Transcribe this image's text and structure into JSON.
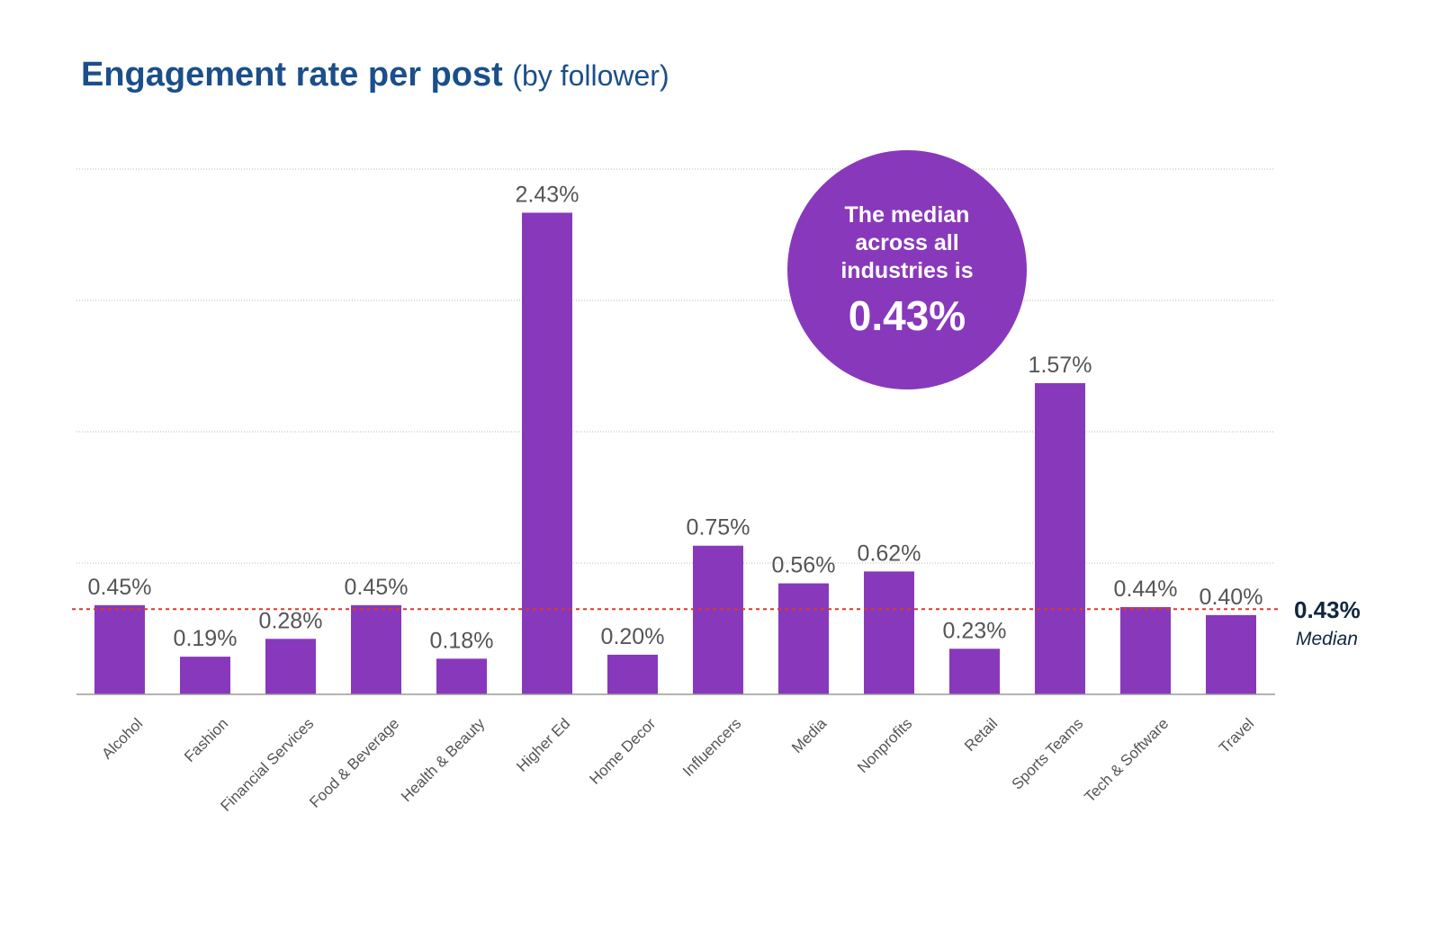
{
  "title": "Engagement rate per post",
  "subtitle": "(by follower)",
  "callout": {
    "text_lines": [
      "The median",
      "across all",
      "industries is"
    ],
    "value": "0.43%"
  },
  "median_label": {
    "value": "0.43%",
    "label": "Median"
  },
  "colors": {
    "bar": "#8839bb",
    "title": "#1b4f8a",
    "median_line": "#d93a2b",
    "median_text": "#12263f",
    "value_label": "#555555",
    "category_label": "#555555",
    "gridline": "#b9b9b9",
    "baseline": "#9a9a9a"
  },
  "chart_data": {
    "type": "bar",
    "title": "Engagement rate per post",
    "subtitle": "(by follower)",
    "xlabel": "",
    "ylabel": "",
    "unit": "%",
    "ylim": [
      0,
      2.65
    ],
    "grid": true,
    "median": 0.43,
    "categories": [
      "Alcohol",
      "Fashion",
      "Financial Services",
      "Food & Beverage",
      "Health & Beauty",
      "Higher Ed",
      "Home Decor",
      "Influencers",
      "Media",
      "Nonprofits",
      "Retail",
      "Sports Teams",
      "Tech & Software",
      "Travel"
    ],
    "values": [
      0.45,
      0.19,
      0.28,
      0.45,
      0.18,
      2.43,
      0.2,
      0.75,
      0.56,
      0.62,
      0.23,
      1.57,
      0.44,
      0.4
    ],
    "value_labels": [
      "0.45%",
      "0.19%",
      "0.28%",
      "0.45%",
      "0.18%",
      "2.43%",
      "0.20%",
      "0.75%",
      "0.56%",
      "0.62%",
      "0.23%",
      "1.57%",
      "0.44%",
      "0.40%"
    ]
  }
}
